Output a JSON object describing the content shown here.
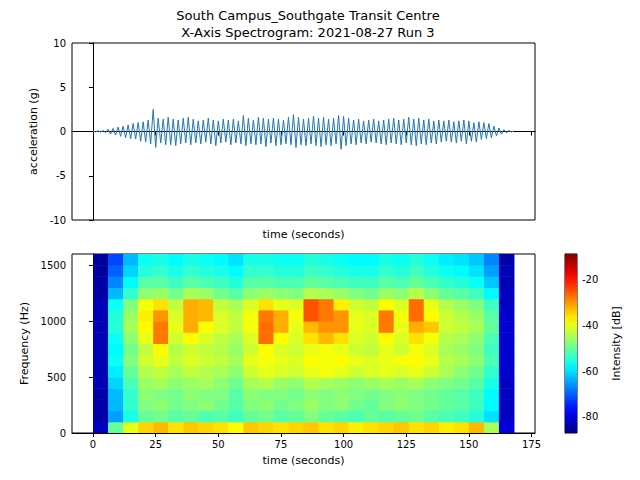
{
  "chart_data": [
    {
      "type": "line",
      "title": "South Campus_Southgate Transit Centre\nX-Axis Spectrogram: 2021-08-27 Run 3",
      "xlabel": "time (seconds)",
      "ylabel": "acceleration (g)",
      "color": "#1f77b4",
      "grid": false,
      "tick_labels": "y",
      "xlim": [
        -8.4,
        176.4
      ],
      "xticks": [
        0,
        25,
        50,
        75,
        100,
        125,
        150,
        175
      ],
      "ylim": [
        -10,
        10
      ],
      "yticks": [
        -10,
        -5,
        0,
        5,
        10
      ],
      "x": [
        0,
        1,
        2,
        3,
        4,
        5,
        6,
        7,
        8,
        9,
        10,
        11,
        12,
        13,
        14,
        15,
        16,
        17,
        18,
        19,
        20,
        21,
        22,
        23,
        24,
        25,
        26,
        27,
        28,
        29,
        30,
        31,
        32,
        33,
        34,
        35,
        36,
        37,
        38,
        39,
        40,
        41,
        42,
        43,
        44,
        45,
        46,
        47,
        48,
        49,
        50,
        51,
        52,
        53,
        54,
        55,
        56,
        57,
        58,
        59,
        60,
        61,
        62,
        63,
        64,
        65,
        66,
        67,
        68,
        69,
        70,
        71,
        72,
        73,
        74,
        75,
        76,
        77,
        78,
        79,
        80,
        81,
        82,
        83,
        84,
        85,
        86,
        87,
        88,
        89,
        90,
        91,
        92,
        93,
        94,
        95,
        96,
        97,
        98,
        99,
        100,
        101,
        102,
        103,
        104,
        105,
        106,
        107,
        108,
        109,
        110,
        111,
        112,
        113,
        114,
        115,
        116,
        117,
        118,
        119,
        120,
        121,
        122,
        123,
        124,
        125,
        126,
        127,
        128,
        129,
        130,
        131,
        132,
        133,
        134,
        135,
        136,
        137,
        138,
        139,
        140,
        141,
        142,
        143,
        144,
        145,
        146,
        147,
        148,
        149,
        150,
        151,
        152,
        153,
        154,
        155,
        156,
        157,
        158,
        159,
        160,
        161,
        162,
        163,
        164,
        165,
        166,
        167,
        168
      ],
      "values": [
        0.05,
        -0.05,
        0.08,
        -0.07,
        0.1,
        -0.12,
        0.25,
        -0.3,
        0.35,
        -0.4,
        0.5,
        -0.55,
        0.6,
        -0.7,
        0.75,
        -0.8,
        0.9,
        -0.85,
        1.0,
        -1.1,
        1.1,
        -1.2,
        1.3,
        -1.4,
        2.5,
        -1.8,
        1.5,
        -1.3,
        1.4,
        -1.5,
        1.6,
        -1.5,
        1.4,
        -1.6,
        1.3,
        -1.4,
        1.5,
        -1.3,
        1.6,
        -1.5,
        1.4,
        -1.3,
        1.2,
        -1.4,
        1.3,
        -1.2,
        1.5,
        -1.4,
        1.3,
        -1.6,
        1.2,
        -1.3,
        1.4,
        -1.2,
        1.3,
        -1.5,
        1.4,
        -1.3,
        1.2,
        -1.4,
        1.8,
        -1.6,
        1.5,
        -1.4,
        1.3,
        -1.5,
        1.6,
        -1.4,
        1.5,
        -1.7,
        1.4,
        -1.3,
        1.5,
        -1.6,
        1.4,
        -1.5,
        1.3,
        -1.4,
        1.6,
        -1.5,
        1.9,
        -1.8,
        1.6,
        -1.5,
        1.4,
        -1.6,
        1.5,
        -1.4,
        1.7,
        -1.6,
        1.5,
        -1.7,
        1.6,
        -1.5,
        1.4,
        -1.6,
        1.5,
        -1.4,
        1.8,
        -2.0,
        1.7,
        -1.6,
        1.5,
        -1.4,
        1.3,
        -1.5,
        1.4,
        -1.3,
        1.2,
        -1.4,
        1.3,
        -1.2,
        1.4,
        -1.3,
        1.2,
        -1.4,
        1.3,
        -1.5,
        1.4,
        -1.3,
        1.5,
        -1.4,
        1.3,
        -1.5,
        1.4,
        -1.3,
        1.6,
        -1.5,
        1.4,
        -1.6,
        1.5,
        -1.4,
        1.3,
        -1.5,
        1.4,
        -1.3,
        1.2,
        -1.4,
        1.3,
        -1.2,
        1.2,
        -1.1,
        1.3,
        -1.2,
        1.1,
        -1.3,
        1.2,
        -1.1,
        1.3,
        -1.4,
        1.2,
        -1.1,
        1.0,
        -1.2,
        1.1,
        -0.9,
        1.0,
        -0.8,
        0.9,
        -0.7,
        0.6,
        -0.5,
        0.4,
        -0.3,
        0.2,
        -0.15,
        0.1,
        -0.05,
        0.05
      ]
    },
    {
      "type": "heatmap",
      "xlabel": "time (seconds)",
      "ylabel": "Frequency (Hz)",
      "grid": false,
      "xlim": [
        -8.4,
        176.4
      ],
      "xticks": [
        0,
        25,
        50,
        75,
        100,
        125,
        150,
        175
      ],
      "ylim": [
        0,
        1600
      ],
      "yticks": [
        0,
        500,
        1000,
        1500
      ],
      "x_edges": [
        0,
        6,
        12,
        18,
        24,
        30,
        36,
        42,
        48,
        54,
        60,
        66,
        72,
        78,
        84,
        90,
        96,
        102,
        108,
        114,
        120,
        126,
        132,
        138,
        144,
        150,
        156,
        162,
        168
      ],
      "y_edges": [
        0,
        100,
        200,
        300,
        400,
        500,
        600,
        700,
        800,
        900,
        1000,
        1100,
        1200,
        1300,
        1400,
        1500,
        1600
      ],
      "cells": [
        [
          -82,
          -50,
          -40,
          -35,
          -33,
          -36,
          -34,
          -35,
          -36,
          -38,
          -34,
          -35,
          -36,
          -35,
          -34,
          -36,
          -35,
          -37,
          -36,
          -35,
          -34,
          -36,
          -35,
          -37,
          -36,
          -33,
          -45,
          -80
        ],
        [
          -84,
          -65,
          -56,
          -50,
          -49,
          -51,
          -50,
          -52,
          -51,
          -53,
          -50,
          -49,
          -51,
          -50,
          -48,
          -50,
          -51,
          -52,
          -50,
          -51,
          -50,
          -49,
          -51,
          -52,
          -53,
          -55,
          -60,
          -82
        ],
        [
          -84,
          -63,
          -54,
          -48,
          -47,
          -49,
          -48,
          -47,
          -49,
          -51,
          -48,
          -47,
          -49,
          -48,
          -46,
          -48,
          -47,
          -49,
          -50,
          -48,
          -47,
          -48,
          -49,
          -50,
          -51,
          -53,
          -58,
          -82
        ],
        [
          -84,
          -63,
          -54,
          -47,
          -48,
          -49,
          -47,
          -48,
          -48,
          -51,
          -47,
          -48,
          -48,
          -49,
          -47,
          -48,
          -47,
          -48,
          -49,
          -48,
          -47,
          -48,
          -49,
          -50,
          -51,
          -53,
          -58,
          -82
        ],
        [
          -83,
          -61,
          -52,
          -46,
          -45,
          -47,
          -46,
          -45,
          -47,
          -49,
          -45,
          -44,
          -46,
          -47,
          -44,
          -45,
          -46,
          -47,
          -46,
          -45,
          -46,
          -45,
          -47,
          -48,
          -49,
          -51,
          -56,
          -82
        ],
        [
          -83,
          -59,
          -50,
          -44,
          -43,
          -45,
          -43,
          -44,
          -45,
          -47,
          -42,
          -40,
          -41,
          -42,
          -40,
          -39,
          -40,
          -42,
          -41,
          -40,
          -41,
          -40,
          -42,
          -45,
          -47,
          -49,
          -54,
          -81
        ],
        [
          -83,
          -57,
          -48,
          -42,
          -40,
          -43,
          -41,
          -42,
          -43,
          -45,
          -40,
          -39,
          -40,
          -41,
          -38,
          -39,
          -38,
          -40,
          -41,
          -40,
          -39,
          -38,
          -40,
          -44,
          -45,
          -47,
          -52,
          -81
        ],
        [
          -83,
          -58,
          -49,
          -43,
          -38,
          -44,
          -42,
          -43,
          -44,
          -46,
          -42,
          -38,
          -41,
          -42,
          -40,
          -39,
          -40,
          -42,
          -43,
          -40,
          -42,
          -39,
          -41,
          -45,
          -46,
          -48,
          -53,
          -81
        ],
        [
          -83,
          -57,
          -47,
          -40,
          -28,
          -42,
          -38,
          -41,
          -43,
          -45,
          -41,
          -27,
          -38,
          -41,
          -36,
          -33,
          -36,
          -41,
          -42,
          -38,
          -41,
          -36,
          -39,
          -44,
          -45,
          -47,
          -52,
          -81
        ],
        [
          -83,
          -55,
          -45,
          -38,
          -28,
          -40,
          -32,
          -38,
          -41,
          -43,
          -39,
          -27,
          -32,
          -40,
          -33,
          -30,
          -30,
          -40,
          -41,
          -28,
          -40,
          -32,
          -34,
          -42,
          -43,
          -45,
          -50,
          -81
        ],
        [
          -83,
          -55,
          -46,
          -37,
          -30,
          -41,
          -32,
          -33,
          -41,
          -43,
          -39,
          -28,
          -32,
          -39,
          -25,
          -28,
          -30,
          -40,
          -41,
          -28,
          -39,
          -27,
          -38,
          -42,
          -44,
          -46,
          -51,
          -81
        ],
        [
          -83,
          -57,
          -48,
          -39,
          -36,
          -43,
          -32,
          -33,
          -43,
          -45,
          -41,
          -36,
          -40,
          -41,
          -25,
          -28,
          -37,
          -42,
          -43,
          -38,
          -41,
          -27,
          -40,
          -44,
          -46,
          -48,
          -53,
          -82
        ],
        [
          -84,
          -63,
          -54,
          -47,
          -46,
          -49,
          -45,
          -46,
          -49,
          -51,
          -47,
          -46,
          -47,
          -48,
          -44,
          -45,
          -46,
          -48,
          -49,
          -46,
          -47,
          -44,
          -47,
          -50,
          -51,
          -53,
          -58,
          -82
        ],
        [
          -84,
          -67,
          -58,
          -51,
          -51,
          -53,
          -51,
          -52,
          -53,
          -55,
          -51,
          -51,
          -52,
          -52,
          -50,
          -51,
          -52,
          -53,
          -53,
          -51,
          -52,
          -50,
          -52,
          -54,
          -55,
          -57,
          -62,
          -83
        ],
        [
          -85,
          -70,
          -61,
          -55,
          -54,
          -56,
          -54,
          -55,
          -56,
          -58,
          -54,
          -54,
          -55,
          -55,
          -53,
          -54,
          -55,
          -56,
          -56,
          -54,
          -55,
          -53,
          -55,
          -57,
          -58,
          -60,
          -65,
          -83
        ],
        [
          -85,
          -72,
          -63,
          -57,
          -56,
          -58,
          -56,
          -57,
          -58,
          -60,
          -56,
          -56,
          -57,
          -57,
          -55,
          -56,
          -57,
          -58,
          -58,
          -56,
          -57,
          -55,
          -57,
          -59,
          -60,
          -62,
          -67,
          -84
        ]
      ],
      "colorbar": {
        "range": [
          -87,
          -9
        ],
        "ticks": [
          -80,
          -60,
          -40,
          -20
        ],
        "label": "Intensity [dB]"
      }
    }
  ]
}
